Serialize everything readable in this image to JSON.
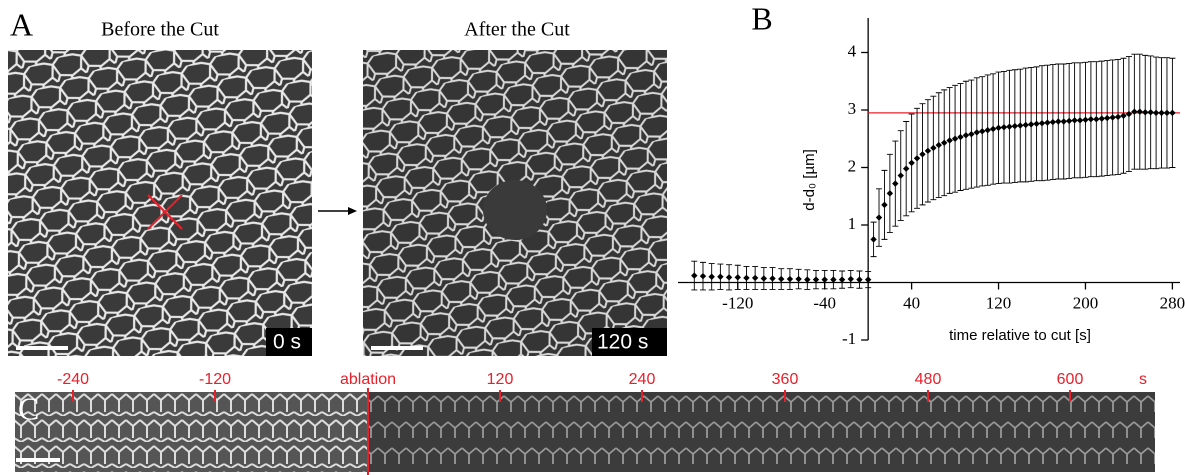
{
  "panel_a": {
    "label": "A",
    "before_title": "Before the Cut",
    "after_title": "After the Cut",
    "before_time": "0 s",
    "after_time": "120 s"
  },
  "panel_c": {
    "label": "C",
    "ticks": [
      "-240",
      "-120",
      "ablation",
      "120",
      "240",
      "360",
      "480",
      "600",
      "s"
    ]
  },
  "chart_data": {
    "type": "scatter",
    "panel_label": "B",
    "x_label": "time relative to cut [s]",
    "y_label": "d-d₀ [µm]",
    "xlim": [
      -175,
      287
    ],
    "ylim": [
      -1,
      4.6
    ],
    "xticks": [
      -120,
      -40,
      40,
      120,
      200,
      280
    ],
    "yticks": [
      -1,
      1,
      2,
      3,
      4
    ],
    "reference_line": 2.95,
    "reference_color": "#e8202a",
    "series": [
      {
        "color": "#000000",
        "x": [
          -160,
          -152,
          -144,
          -136,
          -128,
          -120,
          -112,
          -104,
          -96,
          -88,
          -80,
          -72,
          -64,
          -56,
          -48,
          -40,
          -32,
          -24,
          -16,
          -8,
          0
        ],
        "values": [
          0.12,
          0.11,
          0.1,
          0.1,
          0.09,
          0.09,
          0.08,
          0.08,
          0.07,
          0.07,
          0.06,
          0.06,
          0.06,
          0.05,
          0.05,
          0.05,
          0.05,
          0.05,
          0.06,
          0.05,
          0.05
        ],
        "errors": [
          0.25,
          0.24,
          0.23,
          0.22,
          0.22,
          0.21,
          0.2,
          0.2,
          0.19,
          0.19,
          0.18,
          0.18,
          0.17,
          0.17,
          0.16,
          0.16,
          0.16,
          0.15,
          0.15,
          0.15,
          0.14
        ]
      },
      {
        "color": "#000000",
        "x": [
          5,
          10,
          15,
          20,
          25,
          30,
          35,
          40,
          45,
          50,
          55,
          60,
          65,
          70,
          75,
          80,
          85,
          90,
          95,
          100,
          105,
          110,
          115,
          120,
          125,
          130,
          135,
          140,
          145,
          150,
          155,
          160,
          165,
          170,
          175,
          180,
          185,
          190,
          195,
          200,
          205,
          210,
          215,
          220,
          225,
          230,
          235,
          240,
          245,
          250,
          255,
          260,
          265,
          270,
          275,
          280
        ],
        "values": [
          0.75,
          1.13,
          1.35,
          1.55,
          1.72,
          1.86,
          1.98,
          2.08,
          2.16,
          2.23,
          2.29,
          2.34,
          2.39,
          2.43,
          2.47,
          2.5,
          2.53,
          2.56,
          2.58,
          2.61,
          2.63,
          2.65,
          2.67,
          2.69,
          2.7,
          2.71,
          2.72,
          2.73,
          2.74,
          2.75,
          2.76,
          2.77,
          2.78,
          2.79,
          2.8,
          2.8,
          2.81,
          2.82,
          2.82,
          2.83,
          2.84,
          2.84,
          2.85,
          2.86,
          2.87,
          2.88,
          2.9,
          2.93,
          2.97,
          2.97,
          2.96,
          2.96,
          2.95,
          2.95,
          2.95,
          2.95
        ],
        "errors": [
          0.3,
          0.5,
          0.6,
          0.68,
          0.74,
          0.78,
          0.82,
          0.85,
          0.87,
          0.88,
          0.89,
          0.9,
          0.91,
          0.92,
          0.92,
          0.93,
          0.93,
          0.94,
          0.94,
          0.95,
          0.95,
          0.96,
          0.96,
          0.97,
          0.97,
          0.98,
          0.98,
          0.98,
          0.99,
          0.99,
          0.99,
          1.0,
          1.0,
          1.0,
          1.0,
          1.0,
          1.0,
          1.0,
          1.0,
          1.0,
          1.0,
          1.0,
          1.0,
          1.0,
          1.0,
          1.0,
          1.0,
          1.0,
          1.0,
          1.0,
          0.99,
          0.98,
          0.97,
          0.96,
          0.96,
          0.95
        ]
      }
    ]
  }
}
